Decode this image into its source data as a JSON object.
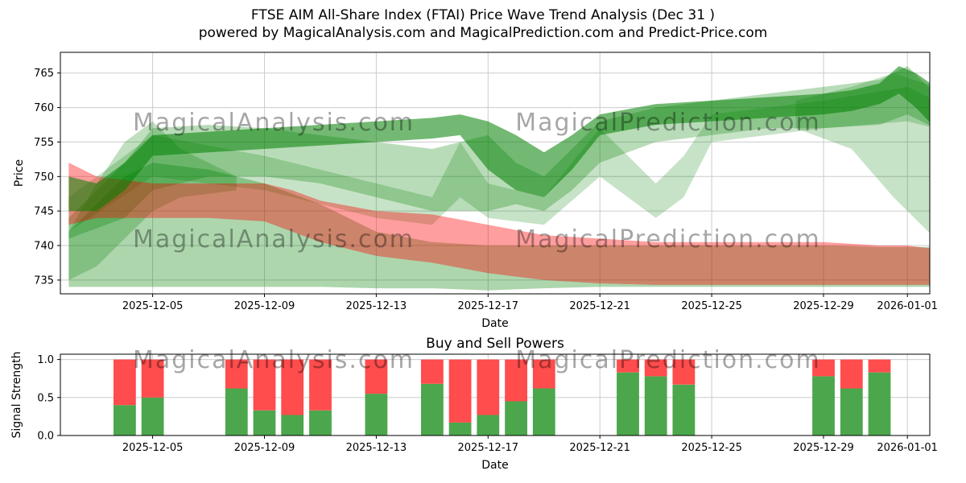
{
  "header": {
    "title": "FTSE AIM All-Share Index (FTAI) Price Wave Trend Analysis (Dec 31 )",
    "subtitle": "powered by MagicalAnalysis.com and MagicalPrediction.com and Predict-Price.com"
  },
  "watermarks": {
    "analysis": "MagicalAnalysis.com",
    "prediction": "MagicalPrediction.com"
  },
  "colors": {
    "green": "#008000",
    "red": "#ff0000",
    "bar_green": "#4ca64c",
    "bar_red": "#ff4c4c",
    "grid": "#cccccc",
    "spine": "#000000",
    "watermark": "#808080"
  },
  "chart_data": [
    {
      "type": "area",
      "title": "",
      "xlabel": "Date",
      "ylabel": "Price",
      "xlim": [
        -0.3,
        30.8
      ],
      "ylim": [
        733,
        768
      ],
      "x_start_date": "2025-12-02",
      "grid": true,
      "y_ticks": [
        735,
        740,
        745,
        750,
        755,
        760,
        765
      ],
      "x_ticks": [
        {
          "day": 3,
          "label": "2025-12-05"
        },
        {
          "day": 7,
          "label": "2025-12-09"
        },
        {
          "day": 11,
          "label": "2025-12-13"
        },
        {
          "day": 15,
          "label": "2025-12-17"
        },
        {
          "day": 19,
          "label": "2025-12-21"
        },
        {
          "day": 23,
          "label": "2025-12-25"
        },
        {
          "day": 27,
          "label": "2025-12-29"
        },
        {
          "day": 30,
          "label": "2026-01-01"
        }
      ],
      "bands": [
        {
          "name": "lower-envelope",
          "color": "green",
          "alpha": 0.32,
          "x": [
            0,
            1,
            2,
            3,
            5,
            7,
            9,
            11,
            13,
            15,
            17,
            19,
            21,
            23,
            25,
            27,
            29,
            30,
            31
          ],
          "upper": [
            742,
            746,
            750,
            752,
            751,
            749,
            746,
            742,
            740.5,
            740,
            740,
            740,
            740,
            740,
            740,
            740,
            739.8,
            739.8,
            739.8
          ],
          "lower": [
            734,
            734,
            734,
            734,
            734,
            734,
            734,
            733.8,
            733.8,
            733.5,
            733.8,
            734,
            734,
            734,
            734,
            734,
            734,
            734,
            734
          ]
        },
        {
          "name": "upper-band",
          "color": "green",
          "alpha": 0.28,
          "x": [
            0,
            2,
            3,
            5,
            7,
            9,
            11,
            13,
            15,
            16,
            17,
            18,
            19,
            21,
            23,
            25,
            27,
            29,
            30,
            31
          ],
          "upper": [
            744,
            752,
            757,
            757.5,
            757,
            756,
            755,
            754,
            756,
            752,
            750,
            754,
            758,
            760,
            761,
            762,
            763,
            764,
            766,
            762
          ],
          "lower": [
            741,
            744,
            748,
            750,
            750,
            749,
            747,
            745,
            745,
            746,
            745,
            748,
            752,
            755,
            756,
            757,
            757,
            757.5,
            759,
            757
          ]
        },
        {
          "name": "crossing-band",
          "color": "green",
          "alpha": 0.22,
          "x": [
            0,
            3,
            7,
            11,
            13,
            14,
            15,
            17,
            19,
            20,
            21,
            22,
            23,
            27,
            30,
            31
          ],
          "upper": [
            747,
            756,
            753,
            749,
            747,
            755,
            749,
            747,
            757,
            753,
            749,
            753,
            759,
            761,
            763,
            761
          ],
          "lower": [
            742,
            750,
            748,
            744,
            743,
            747,
            744,
            743,
            750,
            747,
            744,
            747,
            755,
            757,
            758,
            757
          ]
        },
        {
          "name": "left-blob",
          "color": "green",
          "alpha": 0.25,
          "x": [
            0,
            1,
            2,
            3,
            4,
            6
          ],
          "upper": [
            742,
            749,
            755,
            758,
            754,
            750
          ],
          "lower": [
            735,
            737,
            741,
            745,
            747,
            748
          ]
        },
        {
          "name": "right-fan",
          "color": "green",
          "alpha": 0.22,
          "x": [
            26,
            28,
            29.5,
            31
          ],
          "upper": [
            761,
            763,
            765,
            763
          ],
          "lower": [
            757,
            754,
            747,
            741
          ]
        },
        {
          "name": "sell-pressure",
          "color": "red",
          "alpha": 0.38,
          "x": [
            0,
            1,
            3,
            5,
            7,
            8,
            9,
            11,
            13,
            15,
            17,
            19,
            21,
            23,
            25,
            27,
            29,
            30,
            31
          ],
          "upper": [
            752,
            750,
            749,
            749,
            749,
            748,
            746.5,
            745,
            744.5,
            743,
            741.5,
            741,
            740.5,
            740.5,
            740.5,
            740.5,
            740,
            740,
            739.5
          ],
          "lower": [
            743,
            744,
            744,
            744,
            743.5,
            742,
            740.5,
            738.5,
            737.5,
            736,
            735,
            734.5,
            734.3,
            734.3,
            734.3,
            734.3,
            734.3,
            734.3,
            734.3
          ]
        },
        {
          "name": "main-trend",
          "color": "green",
          "alpha": 0.55,
          "x": [
            0,
            1,
            2,
            3,
            5,
            7,
            9,
            11,
            13,
            14,
            15,
            16,
            17,
            18,
            19,
            21,
            23,
            25,
            27,
            28,
            29,
            29.7,
            30.3,
            31
          ],
          "upper": [
            750,
            749,
            752,
            756,
            756.5,
            757,
            757.5,
            758,
            758.5,
            759,
            758,
            756,
            753.5,
            756,
            759,
            760.5,
            761,
            761.5,
            762,
            762.5,
            763.5,
            766,
            765,
            763
          ],
          "lower": [
            745,
            745,
            748,
            753,
            753.5,
            754,
            754.5,
            755,
            755.5,
            756,
            751,
            748,
            747,
            751,
            756,
            757.5,
            758,
            758.5,
            759,
            759.5,
            760.5,
            762,
            760,
            757
          ]
        }
      ]
    },
    {
      "type": "bar",
      "title": "Buy and Sell Powers",
      "xlabel": "Date",
      "ylabel": "Signal Strength",
      "xlim": [
        -0.3,
        30.8
      ],
      "ylim": [
        0,
        1.07
      ],
      "grid": true,
      "bar_width_days": 0.8,
      "y_ticks": [
        {
          "v": 0,
          "label": "0.0"
        },
        {
          "v": 0.5,
          "label": "0.5"
        },
        {
          "v": 1,
          "label": "1.0"
        }
      ],
      "x_ticks": [
        {
          "day": 3,
          "label": "2025-12-05"
        },
        {
          "day": 7,
          "label": "2025-12-09"
        },
        {
          "day": 11,
          "label": "2025-12-13"
        },
        {
          "day": 15,
          "label": "2025-12-17"
        },
        {
          "day": 19,
          "label": "2025-12-21"
        },
        {
          "day": 23,
          "label": "2025-12-25"
        },
        {
          "day": 27,
          "label": "2025-12-29"
        },
        {
          "day": 30,
          "label": "2026-01-01"
        }
      ],
      "series": [
        {
          "name": "Buy",
          "color_key": "bar_green"
        },
        {
          "name": "Sell",
          "color_key": "bar_red"
        }
      ],
      "bars": [
        {
          "date": "2025-12-04",
          "day": 2,
          "buy": 0.4,
          "sell": 0.6
        },
        {
          "date": "2025-12-05",
          "day": 3,
          "buy": 0.5,
          "sell": 0.5
        },
        {
          "date": "2025-12-08",
          "day": 6,
          "buy": 0.62,
          "sell": 0.38
        },
        {
          "date": "2025-12-09",
          "day": 7,
          "buy": 0.33,
          "sell": 0.67
        },
        {
          "date": "2025-12-10",
          "day": 8,
          "buy": 0.27,
          "sell": 0.73
        },
        {
          "date": "2025-12-11",
          "day": 9,
          "buy": 0.33,
          "sell": 0.67
        },
        {
          "date": "2025-12-13",
          "day": 11,
          "buy": 0.55,
          "sell": 0.45
        },
        {
          "date": "2025-12-15",
          "day": 13,
          "buy": 0.68,
          "sell": 0.32
        },
        {
          "date": "2025-12-16",
          "day": 14,
          "buy": 0.17,
          "sell": 0.83
        },
        {
          "date": "2025-12-17",
          "day": 15,
          "buy": 0.27,
          "sell": 0.73
        },
        {
          "date": "2025-12-18",
          "day": 16,
          "buy": 0.45,
          "sell": 0.55
        },
        {
          "date": "2025-12-19",
          "day": 17,
          "buy": 0.62,
          "sell": 0.38
        },
        {
          "date": "2025-12-22",
          "day": 20,
          "buy": 0.83,
          "sell": 0.17
        },
        {
          "date": "2025-12-23",
          "day": 21,
          "buy": 0.78,
          "sell": 0.22
        },
        {
          "date": "2025-12-24",
          "day": 22,
          "buy": 0.67,
          "sell": 0.33
        },
        {
          "date": "2025-12-29",
          "day": 27,
          "buy": 0.78,
          "sell": 0.22
        },
        {
          "date": "2025-12-30",
          "day": 28,
          "buy": 0.62,
          "sell": 0.38
        },
        {
          "date": "2025-12-31",
          "day": 29,
          "buy": 0.83,
          "sell": 0.17
        }
      ]
    }
  ]
}
